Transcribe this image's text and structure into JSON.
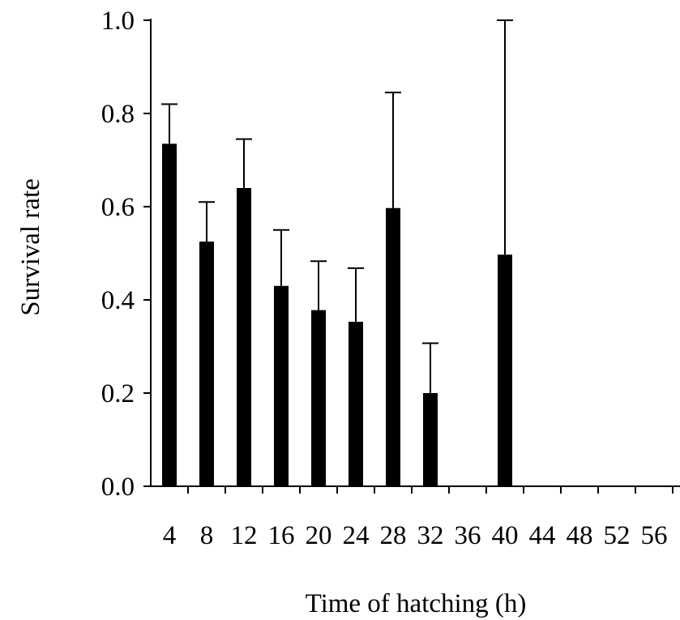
{
  "chart_data": {
    "type": "bar",
    "title": "",
    "xlabel": "Time of hatching (h)",
    "ylabel": "Survival rate",
    "categories": [
      "4",
      "8",
      "12",
      "16",
      "20",
      "24",
      "28",
      "32",
      "36",
      "40",
      "44",
      "48",
      "52",
      "56"
    ],
    "values": [
      0.735,
      0.525,
      0.64,
      0.43,
      0.378,
      0.353,
      0.597,
      0.2,
      null,
      0.497,
      null,
      null,
      null,
      null
    ],
    "error_upper": [
      0.82,
      0.61,
      0.745,
      0.55,
      0.483,
      0.468,
      0.845,
      0.307,
      null,
      1.0,
      null,
      null,
      null,
      null
    ],
    "ylim": [
      0,
      1.0
    ],
    "yticks": [
      "0.0",
      "0.2",
      "0.4",
      "0.6",
      "0.8",
      "1.0"
    ],
    "grid": false,
    "legend": "none",
    "bar_color": "#000000"
  }
}
